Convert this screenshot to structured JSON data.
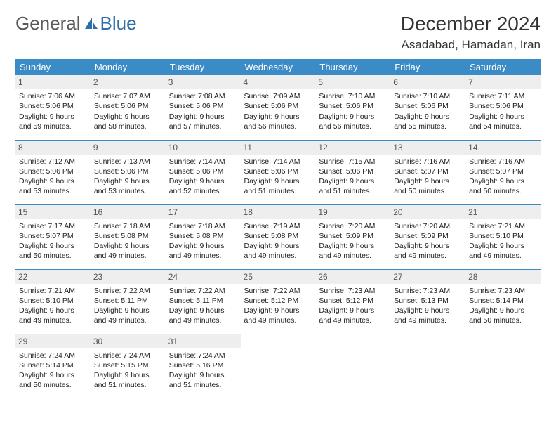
{
  "logo": {
    "text1": "General",
    "text2": "Blue"
  },
  "title": "December 2024",
  "location": "Asadabad, Hamadan, Iran",
  "colors": {
    "header_bg": "#3b8bc7",
    "header_fg": "#ffffff",
    "daynum_bg": "#eeeeee",
    "rule": "#3b8bc7",
    "logo_gray": "#5a5a5a",
    "logo_blue": "#2f6fa8"
  },
  "days_of_week": [
    "Sunday",
    "Monday",
    "Tuesday",
    "Wednesday",
    "Thursday",
    "Friday",
    "Saturday"
  ],
  "weeks": [
    [
      {
        "n": "1",
        "sr": "Sunrise: 7:06 AM",
        "ss": "Sunset: 5:06 PM",
        "dl": "Daylight: 9 hours and 59 minutes."
      },
      {
        "n": "2",
        "sr": "Sunrise: 7:07 AM",
        "ss": "Sunset: 5:06 PM",
        "dl": "Daylight: 9 hours and 58 minutes."
      },
      {
        "n": "3",
        "sr": "Sunrise: 7:08 AM",
        "ss": "Sunset: 5:06 PM",
        "dl": "Daylight: 9 hours and 57 minutes."
      },
      {
        "n": "4",
        "sr": "Sunrise: 7:09 AM",
        "ss": "Sunset: 5:06 PM",
        "dl": "Daylight: 9 hours and 56 minutes."
      },
      {
        "n": "5",
        "sr": "Sunrise: 7:10 AM",
        "ss": "Sunset: 5:06 PM",
        "dl": "Daylight: 9 hours and 56 minutes."
      },
      {
        "n": "6",
        "sr": "Sunrise: 7:10 AM",
        "ss": "Sunset: 5:06 PM",
        "dl": "Daylight: 9 hours and 55 minutes."
      },
      {
        "n": "7",
        "sr": "Sunrise: 7:11 AM",
        "ss": "Sunset: 5:06 PM",
        "dl": "Daylight: 9 hours and 54 minutes."
      }
    ],
    [
      {
        "n": "8",
        "sr": "Sunrise: 7:12 AM",
        "ss": "Sunset: 5:06 PM",
        "dl": "Daylight: 9 hours and 53 minutes."
      },
      {
        "n": "9",
        "sr": "Sunrise: 7:13 AM",
        "ss": "Sunset: 5:06 PM",
        "dl": "Daylight: 9 hours and 53 minutes."
      },
      {
        "n": "10",
        "sr": "Sunrise: 7:14 AM",
        "ss": "Sunset: 5:06 PM",
        "dl": "Daylight: 9 hours and 52 minutes."
      },
      {
        "n": "11",
        "sr": "Sunrise: 7:14 AM",
        "ss": "Sunset: 5:06 PM",
        "dl": "Daylight: 9 hours and 51 minutes."
      },
      {
        "n": "12",
        "sr": "Sunrise: 7:15 AM",
        "ss": "Sunset: 5:06 PM",
        "dl": "Daylight: 9 hours and 51 minutes."
      },
      {
        "n": "13",
        "sr": "Sunrise: 7:16 AM",
        "ss": "Sunset: 5:07 PM",
        "dl": "Daylight: 9 hours and 50 minutes."
      },
      {
        "n": "14",
        "sr": "Sunrise: 7:16 AM",
        "ss": "Sunset: 5:07 PM",
        "dl": "Daylight: 9 hours and 50 minutes."
      }
    ],
    [
      {
        "n": "15",
        "sr": "Sunrise: 7:17 AM",
        "ss": "Sunset: 5:07 PM",
        "dl": "Daylight: 9 hours and 50 minutes."
      },
      {
        "n": "16",
        "sr": "Sunrise: 7:18 AM",
        "ss": "Sunset: 5:08 PM",
        "dl": "Daylight: 9 hours and 49 minutes."
      },
      {
        "n": "17",
        "sr": "Sunrise: 7:18 AM",
        "ss": "Sunset: 5:08 PM",
        "dl": "Daylight: 9 hours and 49 minutes."
      },
      {
        "n": "18",
        "sr": "Sunrise: 7:19 AM",
        "ss": "Sunset: 5:08 PM",
        "dl": "Daylight: 9 hours and 49 minutes."
      },
      {
        "n": "19",
        "sr": "Sunrise: 7:20 AM",
        "ss": "Sunset: 5:09 PM",
        "dl": "Daylight: 9 hours and 49 minutes."
      },
      {
        "n": "20",
        "sr": "Sunrise: 7:20 AM",
        "ss": "Sunset: 5:09 PM",
        "dl": "Daylight: 9 hours and 49 minutes."
      },
      {
        "n": "21",
        "sr": "Sunrise: 7:21 AM",
        "ss": "Sunset: 5:10 PM",
        "dl": "Daylight: 9 hours and 49 minutes."
      }
    ],
    [
      {
        "n": "22",
        "sr": "Sunrise: 7:21 AM",
        "ss": "Sunset: 5:10 PM",
        "dl": "Daylight: 9 hours and 49 minutes."
      },
      {
        "n": "23",
        "sr": "Sunrise: 7:22 AM",
        "ss": "Sunset: 5:11 PM",
        "dl": "Daylight: 9 hours and 49 minutes."
      },
      {
        "n": "24",
        "sr": "Sunrise: 7:22 AM",
        "ss": "Sunset: 5:11 PM",
        "dl": "Daylight: 9 hours and 49 minutes."
      },
      {
        "n": "25",
        "sr": "Sunrise: 7:22 AM",
        "ss": "Sunset: 5:12 PM",
        "dl": "Daylight: 9 hours and 49 minutes."
      },
      {
        "n": "26",
        "sr": "Sunrise: 7:23 AM",
        "ss": "Sunset: 5:12 PM",
        "dl": "Daylight: 9 hours and 49 minutes."
      },
      {
        "n": "27",
        "sr": "Sunrise: 7:23 AM",
        "ss": "Sunset: 5:13 PM",
        "dl": "Daylight: 9 hours and 49 minutes."
      },
      {
        "n": "28",
        "sr": "Sunrise: 7:23 AM",
        "ss": "Sunset: 5:14 PM",
        "dl": "Daylight: 9 hours and 50 minutes."
      }
    ],
    [
      {
        "n": "29",
        "sr": "Sunrise: 7:24 AM",
        "ss": "Sunset: 5:14 PM",
        "dl": "Daylight: 9 hours and 50 minutes."
      },
      {
        "n": "30",
        "sr": "Sunrise: 7:24 AM",
        "ss": "Sunset: 5:15 PM",
        "dl": "Daylight: 9 hours and 51 minutes."
      },
      {
        "n": "31",
        "sr": "Sunrise: 7:24 AM",
        "ss": "Sunset: 5:16 PM",
        "dl": "Daylight: 9 hours and 51 minutes."
      },
      null,
      null,
      null,
      null
    ]
  ]
}
